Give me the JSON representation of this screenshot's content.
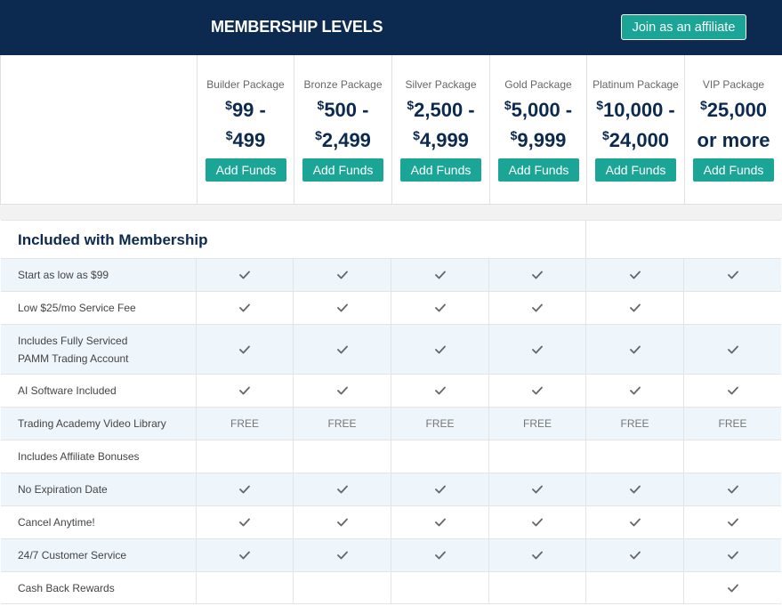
{
  "header": {
    "title": "MEMBERSHIP LEVELS",
    "affiliate_label": "Join as an affiliate",
    "accent": "#1aa596",
    "brand": "#0c2a4f"
  },
  "packages": [
    {
      "name": "Builder Package",
      "price_line1_currency": "$",
      "price_line1": "99 -",
      "price_line2_currency": "$",
      "price_line2": "499",
      "button": "Add Funds"
    },
    {
      "name": "Bronze Package",
      "price_line1_currency": "$",
      "price_line1": "500 -",
      "price_line2_currency": "$",
      "price_line2": "2,499",
      "button": "Add Funds"
    },
    {
      "name": "Silver Package",
      "price_line1_currency": "$",
      "price_line1": "2,500 -",
      "price_line2_currency": "$",
      "price_line2": "4,999",
      "button": "Add Funds"
    },
    {
      "name": "Gold Package",
      "price_line1_currency": "$",
      "price_line1": "5,000 -",
      "price_line2_currency": "$",
      "price_line2": "9,999",
      "button": "Add Funds"
    },
    {
      "name": "Platinum Package",
      "price_line1_currency": "$",
      "price_line1": "10,000 -",
      "price_line2_currency": "$",
      "price_line2": "24,000",
      "button": "Add Funds"
    },
    {
      "name": "VIP Package",
      "price_line1_currency": "$",
      "price_line1": "25,000",
      "price_line2_currency": "",
      "price_line2": "or more",
      "button": "Add Funds"
    }
  ],
  "section": {
    "title": "Included with Membership"
  },
  "features": [
    {
      "label": "Start as low as $99",
      "cells": [
        "check",
        "check",
        "check",
        "check",
        "check",
        "check"
      ]
    },
    {
      "label": "Low $25/mo Service Fee",
      "cells": [
        "check",
        "check",
        "check",
        "check",
        "check",
        ""
      ]
    },
    {
      "label": "Includes Fully Serviced PAMM Trading Account",
      "cells": [
        "check",
        "check",
        "check",
        "check",
        "check",
        "check"
      ]
    },
    {
      "label": "AI Software Included",
      "cells": [
        "check",
        "check",
        "check",
        "check",
        "check",
        "check"
      ]
    },
    {
      "label": "Trading Academy Video Library",
      "cells": [
        "FREE",
        "FREE",
        "FREE",
        "FREE",
        "FREE",
        "FREE"
      ]
    },
    {
      "label": "Includes Affiliate Bonuses",
      "cells": [
        "",
        "",
        "",
        "",
        "",
        ""
      ]
    },
    {
      "label": "No Expiration Date",
      "cells": [
        "check",
        "check",
        "check",
        "check",
        "check",
        "check"
      ]
    },
    {
      "label": "Cancel Anytime!",
      "cells": [
        "check",
        "check",
        "check",
        "check",
        "check",
        "check"
      ]
    },
    {
      "label": "24/7 Customer Service",
      "cells": [
        "check",
        "check",
        "check",
        "check",
        "check",
        "check"
      ]
    },
    {
      "label": "Cash Back Rewards",
      "cells": [
        "",
        "",
        "",
        "",
        "",
        "check"
      ]
    }
  ]
}
